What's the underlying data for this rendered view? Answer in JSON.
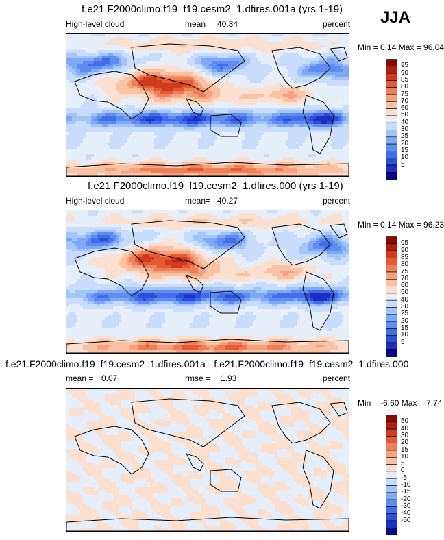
{
  "season": "JJA",
  "units": "percent",
  "colors": {
    "abs_scale": [
      "#08088a",
      "#1b2fc2",
      "#2b4fd9",
      "#416ee8",
      "#5e8cf0",
      "#7eaaf5",
      "#a3c5f9",
      "#c7ddfb",
      "#e6eef9",
      "#fbe0cf",
      "#f9c2a4",
      "#f5a27c",
      "#ef7f57",
      "#e55a36",
      "#d23a1d",
      "#b51e0f",
      "#8c0a05"
    ],
    "diff_scale": [
      "#08088a",
      "#1b2fc2",
      "#2b4fd9",
      "#416ee8",
      "#5e8cf0",
      "#7eaaf5",
      "#a3c5f9",
      "#c7ddfb",
      "#e6eef9",
      "#fbe0cf",
      "#f9c2a4",
      "#f5a27c",
      "#ef7f57",
      "#e55a36",
      "#d23a1d",
      "#b51e0f",
      "#8c0a05"
    ]
  },
  "chart_data": [
    {
      "type": "heatmap",
      "title": "f.e21.F2000climo.f19_f19.cesm2_1.dfires.001a (yrs 1-19)",
      "variable": "High-level cloud",
      "mean_label": "mean=",
      "mean": "40.34",
      "units": "percent",
      "min_max_label": "Min =   0.14 Max =  96.04",
      "min": 0.14,
      "max": 96.04,
      "colorbar_levels": [
        "95",
        "90",
        "85",
        "80",
        "75",
        "70",
        "60",
        "50",
        "40",
        "30",
        "25",
        "20",
        "15",
        "10",
        "5"
      ]
    },
    {
      "type": "heatmap",
      "title": "f.e21.F2000climo.f19_f19.cesm2_1.dfires.000 (yrs 1-19)",
      "variable": "High-level cloud",
      "mean_label": "mean=",
      "mean": "40.27",
      "units": "percent",
      "min_max_label": "Min =   0.14 Max =  96.23",
      "min": 0.14,
      "max": 96.23,
      "colorbar_levels": [
        "95",
        "90",
        "85",
        "80",
        "75",
        "70",
        "60",
        "50",
        "40",
        "30",
        "25",
        "20",
        "15",
        "10",
        "5"
      ]
    },
    {
      "type": "heatmap",
      "title": "f.e21.F2000climo.f19_f19.cesm2_1.dfires.001a - f.e21.F2000climo.f19_f19.cesm2_1.dfires.000",
      "mean_label": "mean =",
      "mean": "0.07",
      "rmse_label": "rmse =",
      "rmse": "1.93",
      "units": "percent",
      "min_max_label": "Min =  -6.60 Max =   7.74",
      "min": -6.6,
      "max": 7.74,
      "colorbar_levels": [
        "50",
        "40",
        "30",
        "20",
        "15",
        "10",
        "5",
        "0",
        "-5",
        "-10",
        "-15",
        "-20",
        "-30",
        "-40",
        "-50"
      ]
    }
  ]
}
